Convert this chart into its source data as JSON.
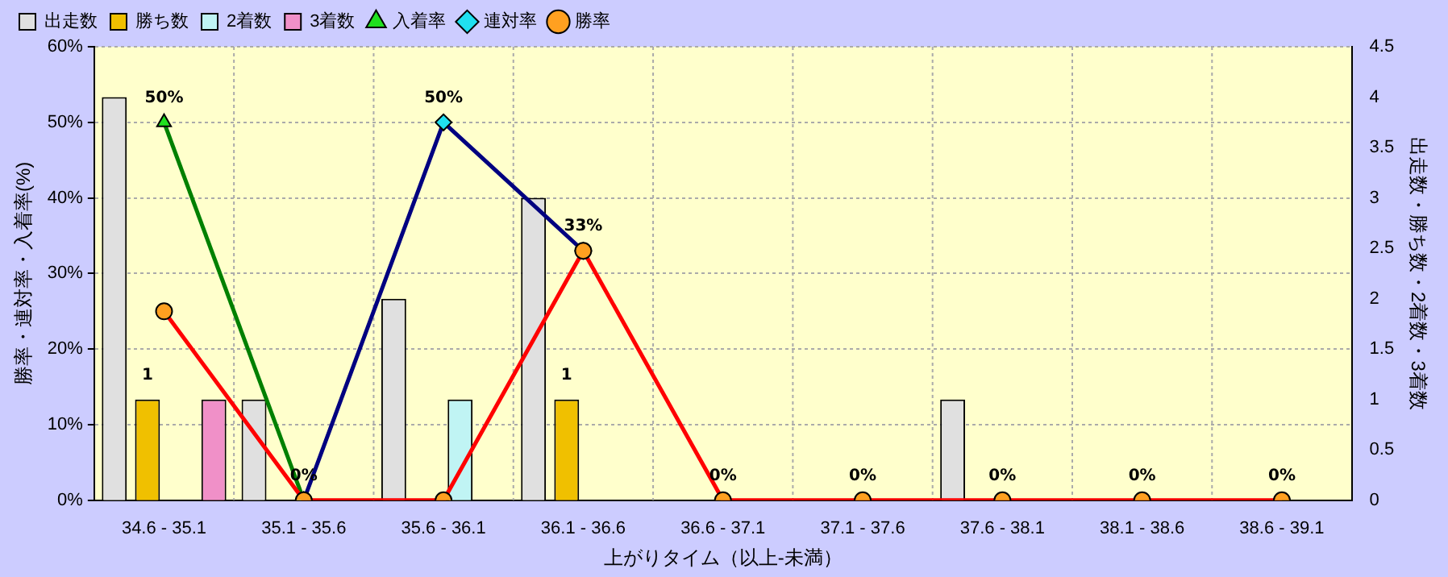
{
  "chart_data": {
    "type": "bar",
    "xlabel": "上がりタイム（以上-未満）",
    "ylabel": "勝率・連対率・入着率(%)",
    "y2label": "出走数・勝ち数・2着数・3着数",
    "categories": [
      "34.6 - 35.1",
      "35.1 - 35.6",
      "35.6 - 36.1",
      "36.1 - 36.6",
      "36.6 - 37.1",
      "37.1 - 37.6",
      "37.6 - 38.1",
      "38.1 - 38.6",
      "38.6 - 39.1"
    ],
    "series": [
      {
        "name": "出走数",
        "axis": "y2",
        "color": "#e0e0e0",
        "values": [
          4,
          1,
          2,
          3,
          0,
          0,
          1,
          0,
          0
        ]
      },
      {
        "name": "勝ち数",
        "axis": "y2",
        "color": "#f0c000",
        "values": [
          1,
          0,
          0,
          1,
          0,
          0,
          0,
          0,
          0
        ],
        "value_labels": [
          "1",
          null,
          null,
          "1",
          null,
          null,
          null,
          null,
          null
        ]
      },
      {
        "name": "2着数",
        "axis": "y2",
        "color": "#c0f4f4",
        "values": [
          0,
          0,
          1,
          0,
          0,
          0,
          0,
          0,
          0
        ]
      },
      {
        "name": "3着数",
        "axis": "y2",
        "color": "#f090c8",
        "values": [
          1,
          0,
          0,
          0,
          0,
          0,
          0,
          0,
          0
        ]
      },
      {
        "name": "入着率",
        "type": "line",
        "color": "#008000",
        "marker": "triangle",
        "values": [
          50,
          0,
          null,
          null,
          null,
          null,
          null,
          null,
          null
        ],
        "value_labels": [
          "50%",
          "0%",
          null,
          null,
          null,
          null,
          null,
          null,
          null
        ]
      },
      {
        "name": "連対率",
        "type": "line",
        "color": "#000080",
        "marker": "diamond",
        "values": [
          null,
          0,
          50,
          33,
          null,
          null,
          null,
          null,
          null
        ],
        "value_labels": [
          null,
          null,
          "50%",
          null,
          null,
          null,
          null,
          null,
          null
        ]
      },
      {
        "name": "勝率",
        "type": "line",
        "color": "#ff0000",
        "marker": "circle",
        "values": [
          25,
          0,
          0,
          33,
          0,
          0,
          0,
          0,
          0
        ],
        "value_labels": [
          null,
          null,
          null,
          "33%",
          "0%",
          "0%",
          "0%",
          "0%",
          "0%"
        ]
      }
    ],
    "ylim": [
      0,
      60
    ],
    "yticks": [
      {
        "value": 0,
        "label": "0%"
      },
      {
        "value": 10,
        "label": "10%"
      },
      {
        "value": 20,
        "label": "20%"
      },
      {
        "value": 30,
        "label": "30%"
      },
      {
        "value": 40,
        "label": "40%"
      },
      {
        "value": 50,
        "label": "50%"
      },
      {
        "value": 60,
        "label": "60%"
      }
    ],
    "y2lim": [
      0,
      4.5
    ],
    "y2ticks": [
      0,
      0.5,
      1,
      1.5,
      2,
      2.5,
      3,
      3.5,
      4,
      4.5
    ],
    "grid": true,
    "legend": "top left"
  }
}
